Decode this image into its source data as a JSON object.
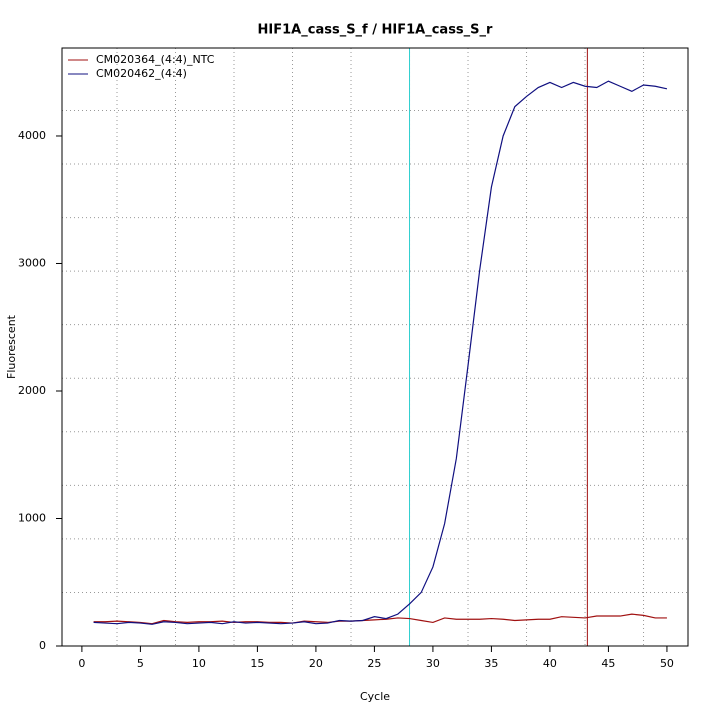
{
  "chart_data": {
    "type": "line",
    "title": "HIF1A_cass_S_f / HIF1A_cass_S_r",
    "xlabel": "Cycle",
    "ylabel": "Fluorescent",
    "x": [
      1,
      2,
      3,
      4,
      5,
      6,
      7,
      8,
      9,
      10,
      11,
      12,
      13,
      14,
      15,
      16,
      17,
      18,
      19,
      20,
      21,
      22,
      23,
      24,
      25,
      26,
      27,
      28,
      29,
      30,
      31,
      32,
      33,
      34,
      35,
      36,
      37,
      38,
      39,
      40,
      41,
      42,
      43,
      44,
      45,
      46,
      47,
      48,
      49,
      50
    ],
    "series": [
      {
        "name": "CM020364_(4:4)_NTC",
        "color": "#a01010",
        "values": [
          190,
          190,
          195,
          190,
          185,
          175,
          200,
          190,
          185,
          190,
          190,
          195,
          185,
          190,
          190,
          185,
          185,
          180,
          195,
          190,
          185,
          195,
          195,
          200,
          205,
          210,
          220,
          215,
          200,
          185,
          220,
          210,
          210,
          210,
          215,
          210,
          200,
          205,
          210,
          210,
          230,
          225,
          220,
          235,
          235,
          235,
          250,
          240,
          220,
          220
        ]
      },
      {
        "name": "CM020462_(4:4)",
        "color": "#101080",
        "values": [
          185,
          180,
          175,
          185,
          180,
          170,
          190,
          185,
          175,
          180,
          185,
          175,
          190,
          180,
          185,
          180,
          175,
          180,
          190,
          175,
          180,
          200,
          195,
          200,
          230,
          215,
          250,
          330,
          420,
          620,
          960,
          1470,
          2200,
          2950,
          3600,
          4000,
          4230,
          4310,
          4380,
          4420,
          4380,
          4420,
          4390,
          4380,
          4430,
          4390,
          4350,
          4400,
          4390,
          4370
        ]
      }
    ],
    "xlim": [
      -1.7,
      51.8
    ],
    "ylim": [
      0,
      4690
    ],
    "xticks": [
      0,
      5,
      10,
      15,
      20,
      25,
      30,
      35,
      40,
      45,
      50
    ],
    "yticks": [
      0,
      1000,
      2000,
      3000,
      4000
    ],
    "x_grid": [
      3,
      8,
      13,
      18,
      23,
      28,
      33,
      38,
      43,
      48
    ],
    "y_grid": [
      420,
      840,
      1260,
      1680,
      2100,
      2520,
      2940,
      3360,
      3780,
      4200
    ],
    "vlines": [
      {
        "x": 28,
        "color": "#30d0d0"
      },
      {
        "x": 43.2,
        "color": "#a01010"
      }
    ],
    "legend": "upper left"
  }
}
